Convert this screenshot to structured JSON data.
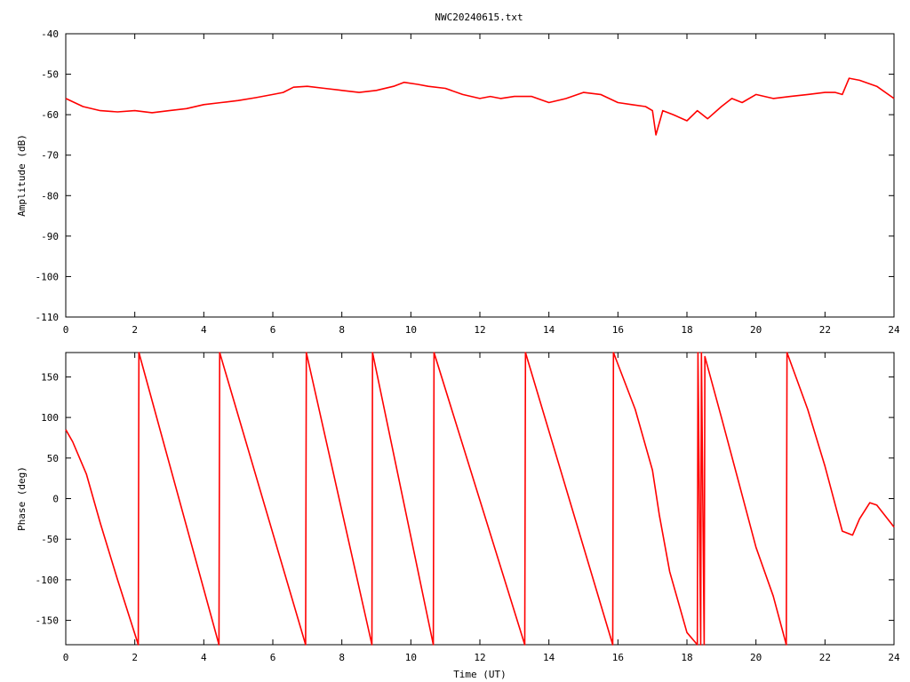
{
  "title": "NWC20240615.txt",
  "colors": {
    "series": "#ff0000",
    "axis": "#000000",
    "background": "#ffffff"
  },
  "chart_data": [
    {
      "type": "line",
      "title": "NWC20240615.txt",
      "xlabel": "",
      "ylabel": "Amplitude (dB)",
      "xlim": [
        0,
        24
      ],
      "ylim": [
        -110,
        -40
      ],
      "xticks": [
        "0",
        "2",
        "4",
        "6",
        "8",
        "10",
        "12",
        "14",
        "16",
        "18",
        "20",
        "22",
        "24"
      ],
      "yticks": [
        "-40",
        "-50",
        "-60",
        "-70",
        "-80",
        "-90",
        "-100",
        "-110"
      ],
      "grid": false,
      "series": [
        {
          "x": [
            0,
            0.5,
            1,
            1.5,
            2,
            2.5,
            3,
            3.5,
            4,
            4.5,
            5,
            5.5,
            6,
            6.3,
            6.6,
            7,
            7.5,
            8,
            8.5,
            9,
            9.5,
            9.8,
            10.2,
            10.5,
            11,
            11.5,
            12,
            12.3,
            12.6,
            13,
            13.5,
            14,
            14.5,
            15,
            15.5,
            16,
            16.4,
            16.8,
            17,
            17.1,
            17.3,
            17.6,
            18,
            18.3,
            18.6,
            19,
            19.3,
            19.6,
            20,
            20.5,
            21,
            21.5,
            22,
            22.3,
            22.5,
            22.7,
            23,
            23.5,
            24
          ],
          "y": [
            -56,
            -58,
            -59,
            -59.3,
            -59,
            -59.5,
            -59,
            -58.5,
            -57.5,
            -57,
            -56.5,
            -55.8,
            -55,
            -54.5,
            -53.2,
            -53,
            -53.5,
            -54,
            -54.5,
            -54,
            -53,
            -52,
            -52.5,
            -53,
            -53.5,
            -55,
            -56,
            -55.5,
            -56,
            -55.5,
            -55.5,
            -57,
            -56,
            -54.5,
            -55,
            -57,
            -57.5,
            -58,
            -59,
            -65,
            -59,
            -60,
            -61.5,
            -59,
            -61,
            -58,
            -56,
            -57,
            -55,
            -56,
            -55.5,
            -55,
            -54.5,
            -54.5,
            -55,
            -51,
            -51.5,
            -53,
            -56
          ]
        }
      ]
    },
    {
      "type": "line",
      "title": "",
      "xlabel": "Time (UT)",
      "ylabel": "Phase (deg)",
      "xlim": [
        0,
        24
      ],
      "ylim": [
        -180,
        180
      ],
      "xticks": [
        "0",
        "2",
        "4",
        "6",
        "8",
        "10",
        "12",
        "14",
        "16",
        "18",
        "20",
        "22",
        "24"
      ],
      "yticks": [
        "150",
        "100",
        "50",
        "0",
        "-50",
        "-100",
        "-150"
      ],
      "grid": false,
      "series": [
        {
          "x": [
            0,
            0.2,
            0.6,
            1,
            1.5,
            2.1,
            2.12,
            4.44,
            4.46,
            6.95,
            6.97,
            8.87,
            8.89,
            10.65,
            10.67,
            13.3,
            13.32,
            15.85,
            15.87,
            16.5,
            17,
            17.2,
            17.5,
            18,
            18.3,
            18.32,
            18.4,
            18.42,
            18.5,
            18.52,
            19,
            19.5,
            20,
            20.5,
            20.88,
            20.9,
            21.5,
            22,
            22.5,
            22.8,
            23,
            23.3,
            23.5,
            24
          ],
          "y": [
            85,
            70,
            30,
            -30,
            -100,
            -180,
            180,
            -180,
            180,
            -180,
            180,
            -180,
            180,
            -180,
            180,
            -180,
            180,
            -180,
            180,
            110,
            35,
            -20,
            -90,
            -165,
            -180,
            180,
            -180,
            180,
            -180,
            175,
            100,
            20,
            -60,
            -120,
            -180,
            180,
            110,
            40,
            -40,
            -45,
            -25,
            -5,
            -8,
            -35
          ]
        }
      ]
    }
  ]
}
